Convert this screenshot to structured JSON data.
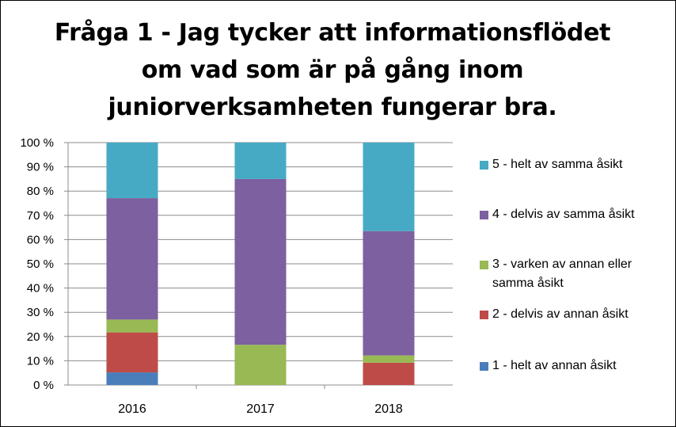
{
  "chart_data": {
    "type": "bar",
    "stacked": true,
    "percent": true,
    "title_lines": [
      "Fråga 1 - Jag tycker att informationsflödet",
      "om vad som är på gång inom",
      "juniorverksamheten fungerar bra."
    ],
    "categories": [
      "2016",
      "2017",
      "2018"
    ],
    "y_ticks": [
      "0 %",
      "10 %",
      "20 %",
      "30 %",
      "40 %",
      "50 %",
      "60 %",
      "70 %",
      "80 %",
      "90 %",
      "100 %"
    ],
    "ylim": [
      0,
      100
    ],
    "grid": true,
    "legend_position": "right",
    "series": [
      {
        "name": "1 - helt av annan åsikt",
        "color": "#4a7ebb",
        "values": [
          5.2,
          0,
          0
        ]
      },
      {
        "name": "2 - delvis av annan åsikt",
        "color": "#be4b48",
        "values": [
          16.5,
          0,
          9.2
        ]
      },
      {
        "name": "3 - varken av annan eller samma åsikt",
        "name_lines": [
          "3 - varken av annan eller",
          "samma åsikt"
        ],
        "color": "#98b954",
        "values": [
          5.3,
          16.6,
          3.0
        ]
      },
      {
        "name": "4 - delvis av samma åsikt",
        "color": "#7d60a0",
        "values": [
          50.1,
          68.4,
          51.3
        ]
      },
      {
        "name": "5 - helt av samma åsikt",
        "color": "#46aac5",
        "values": [
          22.9,
          15.0,
          36.5
        ]
      }
    ]
  }
}
